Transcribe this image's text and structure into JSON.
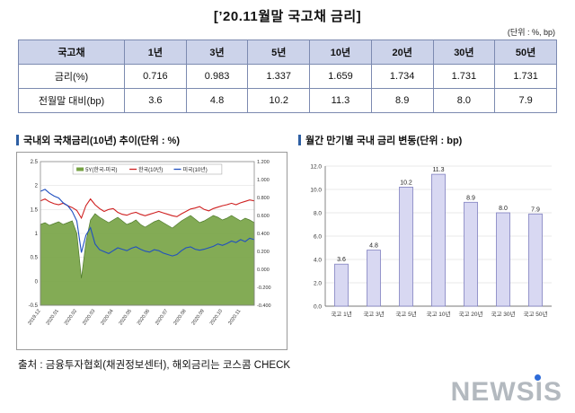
{
  "title": "[’20.11월말 국고채 금리]",
  "unit_note": "(단위 : %, bp)",
  "table": {
    "headers": [
      "국고채",
      "1년",
      "3년",
      "5년",
      "10년",
      "20년",
      "30년",
      "50년"
    ],
    "rows": [
      {
        "label": "금리(%)",
        "values": [
          "0.716",
          "0.983",
          "1.337",
          "1.659",
          "1.734",
          "1.731",
          "1.731"
        ]
      },
      {
        "label": "전월말 대비(bp)",
        "values": [
          "3.6",
          "4.8",
          "10.2",
          "11.3",
          "8.9",
          "8.0",
          "7.9"
        ]
      }
    ]
  },
  "footer": "출처 : 금융투자협회(채권정보센터), 해외금리는 코스콤 CHECK",
  "watermark": "NEWSIS",
  "colors": {
    "table_header_bg": "#ccd3ea",
    "table_border": "#7c8ab0",
    "title_bar": "#2e5fa3",
    "area_green": "#76a243",
    "korea_line": "#cf2020",
    "us_line": "#2050c0",
    "bar_fill": "#d8d8f2",
    "bar_border": "#8080c0",
    "newsis_gray": "#b3b9bf",
    "newsis_dot": "#2e6bd8"
  },
  "chart_data": [
    {
      "type": "line",
      "title": "국내외 국채금리(10년) 추이(단위 : %)",
      "x_tick_labels": [
        "2019.12",
        "2020.01",
        "2020.02",
        "2020.03",
        "2020.04",
        "2020.05",
        "2020.06",
        "2020.07",
        "2020.08",
        "2020.09",
        "2020.10",
        "2020.11"
      ],
      "left_axis": {
        "min": -0.5,
        "max": 2.5,
        "ticks": [
          "2.5",
          "2",
          "1.5",
          "1",
          "0.5",
          "0",
          "-0.5"
        ]
      },
      "right_axis": {
        "min": -0.4,
        "max": 1.2,
        "ticks": [
          "1.200",
          "1.000",
          "0.800",
          "0.600",
          "0.400",
          "0.200",
          "0.000",
          "-0.200",
          "-0.400"
        ]
      },
      "legend_position": "top-center-inside",
      "grid": true,
      "series": [
        {
          "name": "5Y(한국-미국)",
          "type": "area",
          "axis": "right",
          "color": "#76a243",
          "stroke": "#4e7a2a",
          "values": [
            0.5,
            0.52,
            0.49,
            0.51,
            0.53,
            0.5,
            0.52,
            0.54,
            0.4,
            -0.1,
            0.3,
            0.55,
            0.62,
            0.58,
            0.55,
            0.52,
            0.55,
            0.58,
            0.54,
            0.5,
            0.52,
            0.55,
            0.5,
            0.47,
            0.5,
            0.53,
            0.55,
            0.52,
            0.49,
            0.46,
            0.5,
            0.54,
            0.57,
            0.6,
            0.56,
            0.52,
            0.54,
            0.57,
            0.6,
            0.58,
            0.55,
            0.57,
            0.6,
            0.57,
            0.54,
            0.57,
            0.55,
            0.52
          ]
        },
        {
          "name": "한국(10년)",
          "type": "line",
          "axis": "left",
          "color": "#cf2020",
          "values": [
            1.68,
            1.72,
            1.66,
            1.62,
            1.6,
            1.63,
            1.58,
            1.54,
            1.48,
            1.32,
            1.58,
            1.72,
            1.6,
            1.52,
            1.46,
            1.5,
            1.52,
            1.44,
            1.4,
            1.38,
            1.42,
            1.44,
            1.4,
            1.37,
            1.4,
            1.43,
            1.46,
            1.43,
            1.4,
            1.37,
            1.35,
            1.41,
            1.46,
            1.51,
            1.53,
            1.56,
            1.5,
            1.47,
            1.52,
            1.55,
            1.58,
            1.6,
            1.63,
            1.6,
            1.64,
            1.67,
            1.7,
            1.68
          ]
        },
        {
          "name": "미국(10년)",
          "type": "line",
          "axis": "left",
          "color": "#2050c0",
          "values": [
            1.88,
            1.92,
            1.84,
            1.78,
            1.74,
            1.64,
            1.58,
            1.46,
            1.26,
            0.6,
            0.96,
            1.12,
            0.78,
            0.66,
            0.62,
            0.58,
            0.64,
            0.7,
            0.67,
            0.64,
            0.69,
            0.72,
            0.67,
            0.63,
            0.61,
            0.66,
            0.64,
            0.59,
            0.56,
            0.53,
            0.56,
            0.64,
            0.7,
            0.72,
            0.67,
            0.65,
            0.67,
            0.7,
            0.73,
            0.78,
            0.75,
            0.79,
            0.84,
            0.81,
            0.87,
            0.83,
            0.9,
            0.87
          ]
        }
      ]
    },
    {
      "type": "bar",
      "title": "월간 만기별 국내 금리 변동(단위 : bp)",
      "categories": [
        "국고 1년",
        "국고 3년",
        "국고 5년",
        "국고 10년",
        "국고 20년",
        "국고 30년",
        "국고 50년"
      ],
      "values": [
        3.6,
        4.8,
        10.2,
        11.3,
        8.9,
        8.0,
        7.9
      ],
      "ylim": [
        0,
        12
      ],
      "yticks": [
        "0.0",
        "2.0",
        "4.0",
        "6.0",
        "8.0",
        "10.0",
        "12.0"
      ],
      "grid": true,
      "bar_color": "#d8d8f2",
      "bar_border": "#8080c0"
    }
  ]
}
